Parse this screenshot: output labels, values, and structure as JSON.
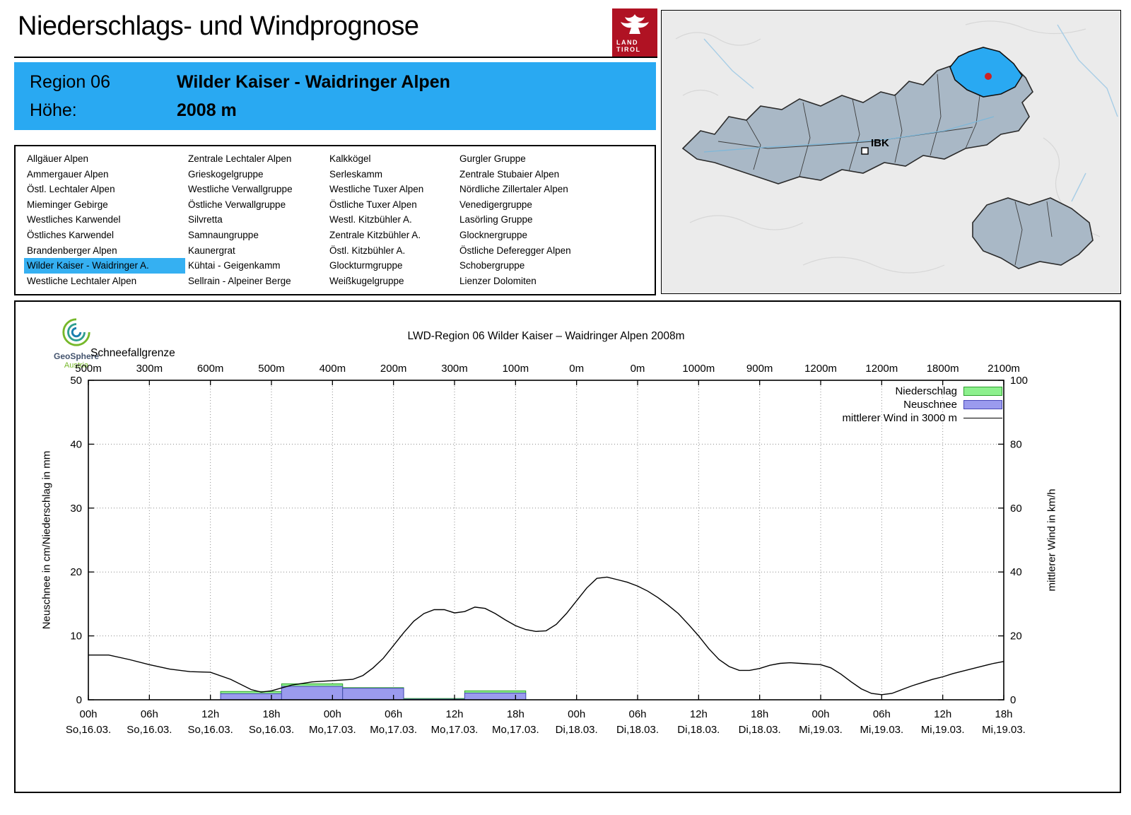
{
  "page": {
    "title": "Niederschlags- und Windprognose"
  },
  "brand": {
    "land": "LAND",
    "tirol": "TIROL",
    "logo_bg": "#b01223"
  },
  "region_header": {
    "bg": "#29a9f2",
    "region_label": "Region 06",
    "region_name": "Wilder Kaiser - Waidringer Alpen",
    "altitude_label": "Höhe:",
    "altitude_value": "2008 m"
  },
  "region_list": {
    "selected": "Wilder Kaiser - Waidringer A.",
    "selected_bg": "#35b0f2",
    "columns": [
      [
        "Allgäuer Alpen",
        "Ammergauer Alpen",
        "Östl. Lechtaler Alpen",
        "Mieminger Gebirge",
        "Westliches Karwendel",
        "Östliches Karwendel",
        "Brandenberger Alpen",
        "Wilder Kaiser - Waidringer A.",
        "Westliche Lechtaler Alpen"
      ],
      [
        "Zentrale Lechtaler Alpen",
        "Grieskogelgruppe",
        "Westliche Verwallgruppe",
        "Östliche Verwallgruppe",
        "Silvretta",
        "Samnaungruppe",
        "Kaunergrat",
        "Kühtai - Geigenkamm",
        "Sellrain - Alpeiner Berge"
      ],
      [
        "Kalkkögel",
        "Serleskamm",
        "Westliche Tuxer Alpen",
        "Östliche Tuxer Alpen",
        "Westl. Kitzbühler A.",
        "Zentrale Kitzbühler A.",
        "Östl. Kitzbühler A.",
        "Glockturmgruppe",
        "Weißkugelgruppe"
      ],
      [
        "Gurgler Gruppe",
        "Zentrale Stubaier Alpen",
        "Nördliche Zillertaler Alpen",
        "Venedigergruppe",
        "Lasörling Gruppe",
        "Glocknergruppe",
        "Östliche Deferegger Alpen",
        "Schobergruppe",
        "Lienzer Dolomiten"
      ]
    ]
  },
  "map": {
    "ibk_label": "IBK",
    "region_fill": "#a9b8c6",
    "highlight_fill": "#29a9f2",
    "marker_color": "#cc2222"
  },
  "chart": {
    "geosphere_line1": "GeoSphere",
    "geosphere_line2": "Austria"
  },
  "chart_data": {
    "type": "bar+line",
    "title": "LWD-Region 06 Wilder Kaiser – Waidringer Alpen 2008m",
    "snowline_label": "Schneefallgrenze",
    "snowline_values": [
      "500m",
      "300m",
      "600m",
      "500m",
      "400m",
      "200m",
      "300m",
      "100m",
      "0m",
      "0m",
      "1000m",
      "900m",
      "1200m",
      "1200m",
      "1800m",
      "2100m"
    ],
    "x_ticks": [
      {
        "hour": "00h",
        "date": "So,16.03."
      },
      {
        "hour": "06h",
        "date": "So,16.03."
      },
      {
        "hour": "12h",
        "date": "So,16.03."
      },
      {
        "hour": "18h",
        "date": "So,16.03."
      },
      {
        "hour": "00h",
        "date": "Mo,17.03."
      },
      {
        "hour": "06h",
        "date": "Mo,17.03."
      },
      {
        "hour": "12h",
        "date": "Mo,17.03."
      },
      {
        "hour": "18h",
        "date": "Mo,17.03."
      },
      {
        "hour": "00h",
        "date": "Di,18.03."
      },
      {
        "hour": "06h",
        "date": "Di,18.03."
      },
      {
        "hour": "12h",
        "date": "Di,18.03."
      },
      {
        "hour": "18h",
        "date": "Di,18.03."
      },
      {
        "hour": "00h",
        "date": "Mi,19.03."
      },
      {
        "hour": "06h",
        "date": "Mi,19.03."
      },
      {
        "hour": "12h",
        "date": "Mi,19.03."
      },
      {
        "hour": "18h",
        "date": "Mi,19.03."
      }
    ],
    "left_axis": {
      "label": "Neuschnee in cm/Niederschlag in mm",
      "min": 0,
      "max": 50,
      "step": 10
    },
    "right_axis": {
      "label": "mittlerer Wind in km/h",
      "min": 0,
      "max": 100,
      "step": 20
    },
    "time_span_hours": 90,
    "grid": "dotted",
    "legend_position": "top-right",
    "legend": [
      {
        "label": "Niederschlag",
        "type": "box",
        "color": "#8df08d",
        "border": "#2da12d"
      },
      {
        "label": "Neuschnee",
        "type": "box",
        "color": "#9b9bee",
        "border": "#4848b8"
      },
      {
        "label": "mittlerer Wind in 3000 m",
        "type": "line",
        "color": "#000000"
      }
    ],
    "bars": [
      {
        "start_h": 13,
        "end_h": 19,
        "niederschlag_mm": 1.3,
        "neuschnee_cm": 0.95
      },
      {
        "start_h": 19,
        "end_h": 25,
        "niederschlag_mm": 2.5,
        "neuschnee_cm": 2.1
      },
      {
        "start_h": 25,
        "end_h": 31,
        "niederschlag_mm": 1.9,
        "neuschnee_cm": 1.8
      },
      {
        "start_h": 31,
        "end_h": 37,
        "niederschlag_mm": 0.2,
        "neuschnee_cm": 0.1
      },
      {
        "start_h": 37,
        "end_h": 43,
        "niederschlag_mm": 1.4,
        "neuschnee_cm": 1.05
      }
    ],
    "wind_line_kmh": [
      [
        0,
        14
      ],
      [
        2,
        14
      ],
      [
        4,
        12.6
      ],
      [
        6,
        11
      ],
      [
        8,
        9.6
      ],
      [
        10,
        8.8
      ],
      [
        12,
        8.6
      ],
      [
        14,
        6.4
      ],
      [
        16,
        3.2
      ],
      [
        17,
        2.4
      ],
      [
        18,
        2.8
      ],
      [
        20,
        4.6
      ],
      [
        22,
        5.6
      ],
      [
        24,
        6
      ],
      [
        26,
        6.4
      ],
      [
        27,
        7.6
      ],
      [
        28,
        10
      ],
      [
        29,
        13
      ],
      [
        30,
        17
      ],
      [
        31,
        21
      ],
      [
        32,
        24.6
      ],
      [
        33,
        27
      ],
      [
        34,
        28.2
      ],
      [
        35,
        28.2
      ],
      [
        36,
        27.2
      ],
      [
        37,
        27.6
      ],
      [
        38,
        29
      ],
      [
        39,
        28.6
      ],
      [
        40,
        27
      ],
      [
        41,
        25
      ],
      [
        42,
        23.2
      ],
      [
        43,
        22
      ],
      [
        44,
        21.4
      ],
      [
        45,
        21.6
      ],
      [
        46,
        23.6
      ],
      [
        47,
        27
      ],
      [
        48,
        31
      ],
      [
        49,
        35
      ],
      [
        50,
        38
      ],
      [
        51,
        38.4
      ],
      [
        52,
        37.6
      ],
      [
        53,
        36.8
      ],
      [
        54,
        35.6
      ],
      [
        55,
        34
      ],
      [
        56,
        32
      ],
      [
        57,
        29.6
      ],
      [
        58,
        27
      ],
      [
        59,
        23.6
      ],
      [
        60,
        20
      ],
      [
        61,
        16
      ],
      [
        62,
        12.6
      ],
      [
        63,
        10.4
      ],
      [
        64,
        9.2
      ],
      [
        65,
        9.2
      ],
      [
        66,
        9.8
      ],
      [
        67,
        10.8
      ],
      [
        68,
        11.4
      ],
      [
        69,
        11.6
      ],
      [
        70,
        11.4
      ],
      [
        71,
        11.2
      ],
      [
        72,
        11
      ],
      [
        73,
        10
      ],
      [
        74,
        8
      ],
      [
        75,
        5.6
      ],
      [
        76,
        3.4
      ],
      [
        77,
        2
      ],
      [
        78,
        1.6
      ],
      [
        79,
        2
      ],
      [
        80,
        3.2
      ],
      [
        81,
        4.4
      ],
      [
        82,
        5.4
      ],
      [
        83,
        6.4
      ],
      [
        84,
        7.2
      ],
      [
        85,
        8.2
      ],
      [
        86,
        9
      ],
      [
        87,
        9.8
      ],
      [
        88,
        10.6
      ],
      [
        89,
        11.4
      ],
      [
        90,
        12
      ]
    ]
  }
}
